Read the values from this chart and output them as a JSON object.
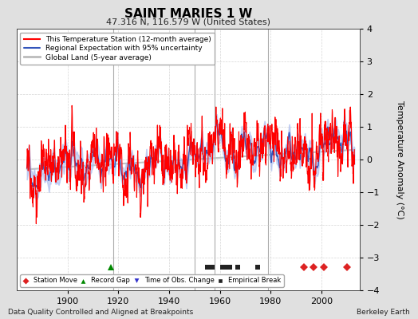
{
  "title": "SAINT MARIES 1 W",
  "subtitle": "47.316 N, 116.579 W (United States)",
  "ylabel": "Temperature Anomaly (°C)",
  "ylim": [
    -4,
    4
  ],
  "xlim": [
    1880,
    2015
  ],
  "yticks": [
    -4,
    -3,
    -2,
    -1,
    0,
    1,
    2,
    3,
    4
  ],
  "xticks": [
    1900,
    1920,
    1940,
    1960,
    1980,
    2000
  ],
  "bg_color": "#e0e0e0",
  "plot_bg_color": "#ffffff",
  "grid_color": "#cccccc",
  "footer_left": "Data Quality Controlled and Aligned at Breakpoints",
  "footer_right": "Berkeley Earth",
  "title_fontsize": 11,
  "subtitle_fontsize": 8,
  "legend_items": [
    {
      "label": "This Temperature Station (12-month average)",
      "color": "#ff0000",
      "lw": 0.8
    },
    {
      "label": "Regional Expectation with 95% uncertainty",
      "color": "#3355bb",
      "lw": 1.0
    },
    {
      "label": "Global Land (5-year average)",
      "color": "#bbbbbb",
      "lw": 1.5
    }
  ],
  "uncertainty_color": "#aabbee",
  "uncertainty_alpha": 0.6,
  "marker_legend": [
    {
      "label": "Station Move",
      "color": "#dd2222",
      "marker": "D",
      "size": 5
    },
    {
      "label": "Record Gap",
      "color": "#008800",
      "marker": "^",
      "size": 6
    },
    {
      "label": "Time of Obs. Change",
      "color": "#3333cc",
      "marker": "v",
      "size": 6
    },
    {
      "label": "Empirical Break",
      "color": "#222222",
      "marker": "s",
      "size": 5
    }
  ],
  "record_gap_years": [
    1917
  ],
  "station_move_years": [
    1993,
    1997,
    2001,
    2010
  ],
  "empirical_break_years": [
    1955,
    1957,
    1961,
    1963,
    1964,
    1967,
    1975
  ],
  "vertical_lines": [
    1918,
    1950,
    1958,
    1979
  ],
  "vline_color": "#888888",
  "vline_lw": 0.8,
  "marker_y": -3.3,
  "seed": 42
}
